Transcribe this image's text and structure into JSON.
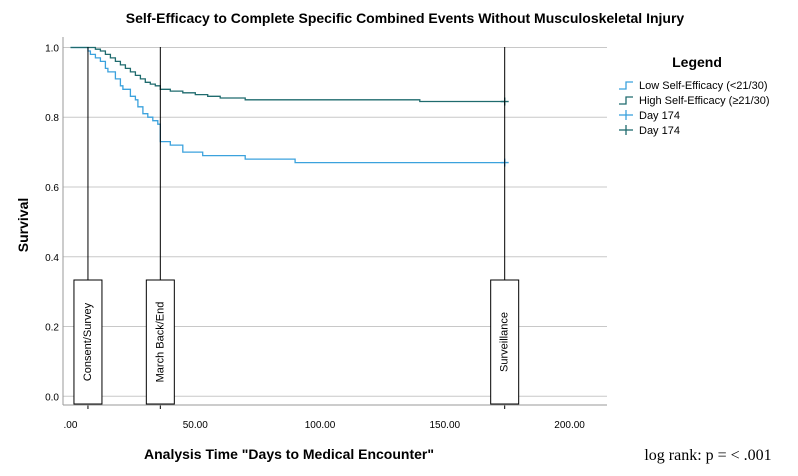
{
  "chart_data": {
    "type": "line",
    "title": "Self-Efficacy to Complete Specific Combined Events Without Musculoskeletal Injury",
    "xlabel": "Analysis Time \"Days to Medical Encounter\"",
    "ylabel": "Survival",
    "xlim": [
      -3,
      215
    ],
    "ylim": [
      -0.025,
      1.03
    ],
    "x_ticks": [
      ".00",
      "50.00",
      "100.00",
      "150.00",
      "200.00"
    ],
    "x_tick_values": [
      0,
      50,
      100,
      150,
      200
    ],
    "y_ticks": [
      "0.0",
      "0.2",
      "0.4",
      "0.6",
      "0.8",
      "1.0"
    ],
    "y_tick_values": [
      0,
      0.2,
      0.4,
      0.6,
      0.8,
      1.0
    ],
    "grid": "horizontal",
    "legend": {
      "title": "Legend",
      "position": "right",
      "entries": [
        {
          "label": "Low Self-Efficacy (<21/30)",
          "kind": "line",
          "color": "#3ba2dd"
        },
        {
          "label": "High Self-Efficacy (≥21/30)",
          "kind": "line",
          "color": "#1f6b6e"
        },
        {
          "label": "Day 174",
          "kind": "censor",
          "color": "#3ba2dd"
        },
        {
          "label": "Day 174",
          "kind": "censor",
          "color": "#1f6b6e"
        }
      ]
    },
    "series": [
      {
        "name": "Low Self-Efficacy (<21/30)",
        "color": "#3ba2dd",
        "x": [
          0,
          7,
          8,
          10,
          12,
          14,
          15,
          18,
          20,
          21,
          24,
          26,
          27,
          29,
          31,
          33,
          35,
          36,
          40,
          45,
          53,
          70,
          90,
          174
        ],
        "y": [
          1.0,
          0.99,
          0.98,
          0.97,
          0.96,
          0.94,
          0.93,
          0.91,
          0.89,
          0.88,
          0.86,
          0.85,
          0.83,
          0.81,
          0.8,
          0.79,
          0.78,
          0.73,
          0.72,
          0.7,
          0.69,
          0.68,
          0.67,
          0.67
        ]
      },
      {
        "name": "High Self-Efficacy (≥21/30)",
        "color": "#1f6b6e",
        "x": [
          0,
          8,
          10,
          12,
          14,
          16,
          18,
          20,
          22,
          24,
          26,
          28,
          30,
          32,
          34,
          36,
          40,
          45,
          50,
          55,
          60,
          70,
          140,
          174
        ],
        "y": [
          1.0,
          1.0,
          0.995,
          0.99,
          0.98,
          0.97,
          0.96,
          0.95,
          0.94,
          0.93,
          0.92,
          0.91,
          0.9,
          0.895,
          0.89,
          0.88,
          0.875,
          0.87,
          0.865,
          0.86,
          0.855,
          0.85,
          0.845,
          0.845
        ]
      }
    ],
    "censor_points": [
      {
        "x": 174,
        "y": 0.67,
        "color": "#3ba2dd"
      },
      {
        "x": 174,
        "y": 0.845,
        "color": "#1f6b6e"
      }
    ],
    "annotations": {
      "markers": [
        {
          "x": 7,
          "label": "Consent/Survey"
        },
        {
          "x": 36,
          "label": "March Back/End"
        },
        {
          "x": 174,
          "label": "Surveillance"
        }
      ],
      "footnote": "log rank: p = < .001"
    }
  }
}
